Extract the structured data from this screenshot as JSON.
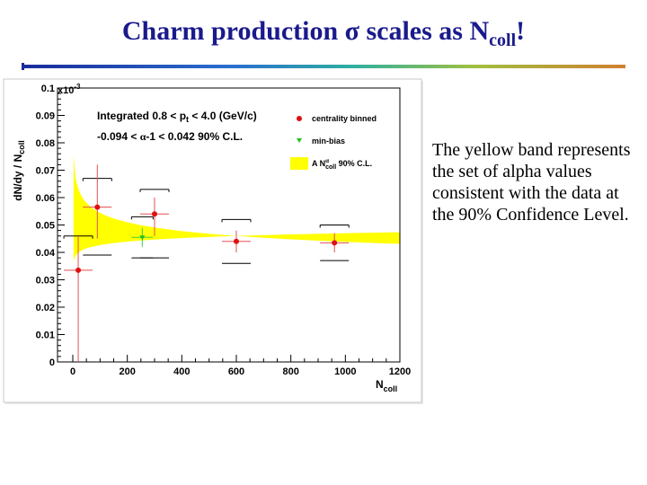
{
  "slide": {
    "title_main": "Charm production ",
    "title_sigma": "σ",
    "title_mid": " scales as N",
    "title_sub": "coll",
    "title_end": "!",
    "note": "The yellow band represents the set of alpha values consistent with the data at the 90% Confidence Level."
  },
  "colors": {
    "title": "#1a1a8c",
    "band": "#ffff00",
    "centrality_marker": "#e01010",
    "minbias_marker": "#20c020"
  },
  "chart_data": {
    "type": "scatter",
    "xlabel_main": "N",
    "xlabel_sub": "coll",
    "ylabel": "dN/dy / N",
    "ylabel_sub": "coll",
    "y_multiplier": "x10",
    "y_multiplier_exp": "-3",
    "xlim": [
      0,
      1200
    ],
    "ylim": [
      0,
      0.1
    ],
    "x_ticks": [
      0,
      200,
      400,
      600,
      800,
      1000,
      1200
    ],
    "x_tick_labels": [
      "0",
      "200",
      "400",
      "600",
      "800",
      "1000",
      "1200"
    ],
    "y_ticks": [
      0,
      0.01,
      0.02,
      0.03,
      0.04,
      0.05,
      0.06,
      0.07,
      0.08,
      0.09,
      0.1
    ],
    "y_tick_labels": [
      "0",
      "0.01",
      "0.02",
      "0.03",
      "0.04",
      "0.05",
      "0.06",
      "0.07",
      "0.08",
      "0.09",
      "0.1"
    ],
    "annotation_line1": "Integrated 0.8 < p",
    "annotation_line1_sub": "t",
    "annotation_line1_end": " < 4.0 (GeV/c)",
    "annotation_line2_a": "-0.094 < ",
    "annotation_line2_alpha": "α",
    "annotation_line2_b": "-1 < 0.042   90% C.L.",
    "legend": [
      {
        "label": "centrality binned",
        "marker": "circle"
      },
      {
        "label": "min-bias",
        "marker": "triangle-down"
      },
      {
        "label_a": "A N",
        "label_sup": "α",
        "label_sub": "coll",
        "label_b": " 90% C.L.",
        "marker": "band"
      }
    ],
    "series": [
      {
        "name": "centrality binned",
        "points": [
          {
            "x": 20,
            "y": 0.0335,
            "sys_lo": 0.0,
            "sys_hi": 0.046,
            "stat_lo": 0.0,
            "stat_hi": 0.046
          },
          {
            "x": 90,
            "y": 0.0565,
            "sys_lo": 0.039,
            "sys_hi": 0.067,
            "stat_lo": 0.045,
            "stat_hi": 0.072
          },
          {
            "x": 300,
            "y": 0.054,
            "sys_lo": 0.038,
            "sys_hi": 0.063,
            "stat_lo": 0.046,
            "stat_hi": 0.06
          },
          {
            "x": 600,
            "y": 0.044,
            "sys_lo": 0.036,
            "sys_hi": 0.052,
            "stat_lo": 0.04,
            "stat_hi": 0.048
          },
          {
            "x": 960,
            "y": 0.0435,
            "sys_lo": 0.037,
            "sys_hi": 0.05,
            "stat_lo": 0.04,
            "stat_hi": 0.047
          }
        ]
      },
      {
        "name": "min-bias",
        "points": [
          {
            "x": 255,
            "y": 0.0455,
            "sys_lo": 0.038,
            "sys_hi": 0.053,
            "stat_lo": 0.042,
            "stat_hi": 0.049
          }
        ]
      }
    ],
    "band_alpha_range": [
      -0.094,
      0.042
    ],
    "band_norm": 0.046,
    "band_pivot_ncoll": 600,
    "grid": false
  }
}
